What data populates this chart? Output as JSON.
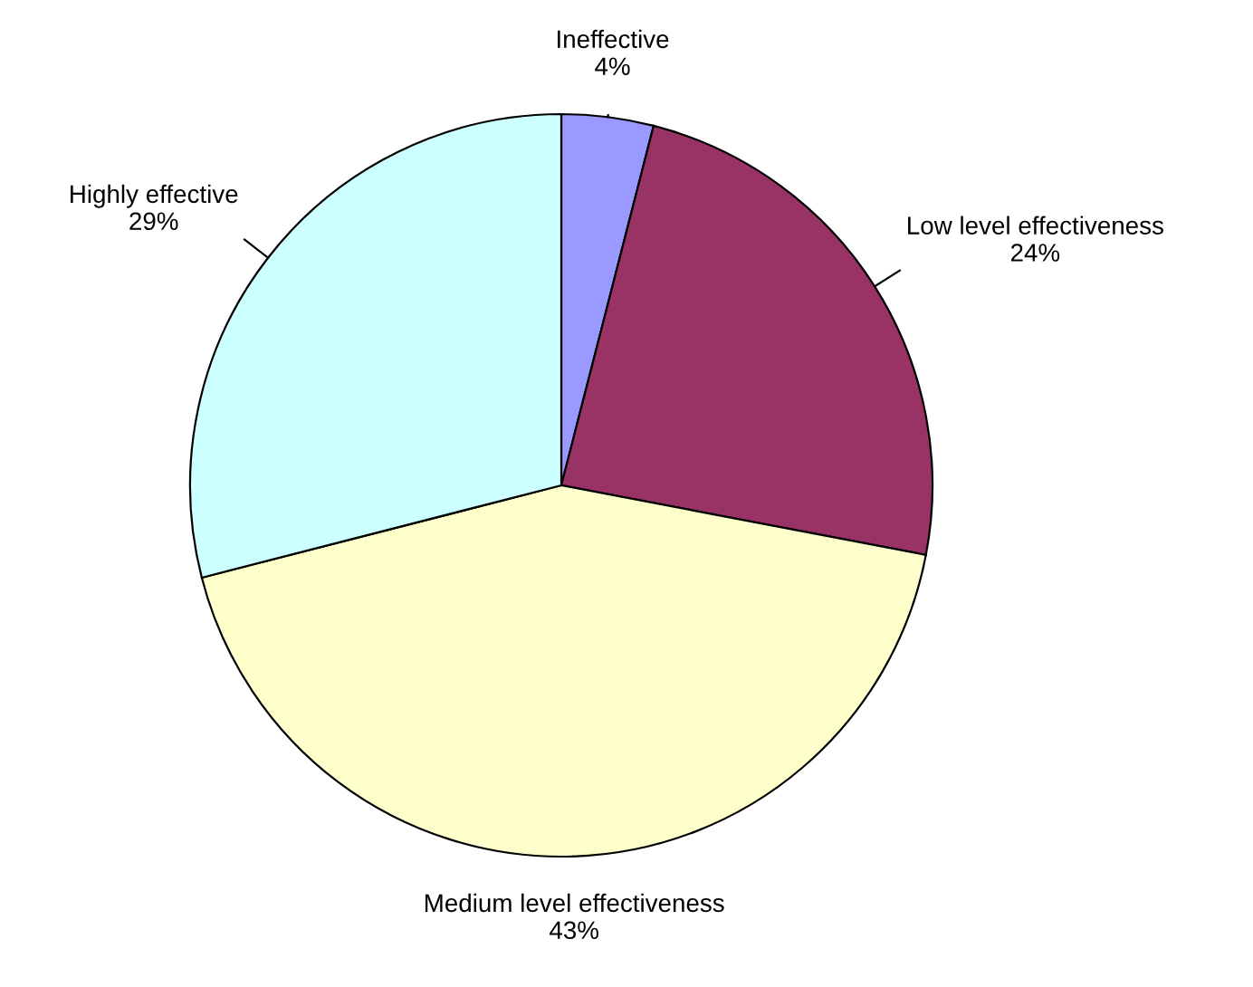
{
  "chart_data": {
    "type": "pie",
    "categories": [
      "Ineffective",
      "Low level effectiveness",
      "Medium level effectiveness",
      "Highly effective"
    ],
    "values": [
      4,
      24,
      43,
      29
    ],
    "value_labels": [
      "4%",
      "24%",
      "43%",
      "29%"
    ],
    "colors": [
      "#9999ff",
      "#993366",
      "#ffffcc",
      "#ccffff"
    ],
    "legend": false
  }
}
